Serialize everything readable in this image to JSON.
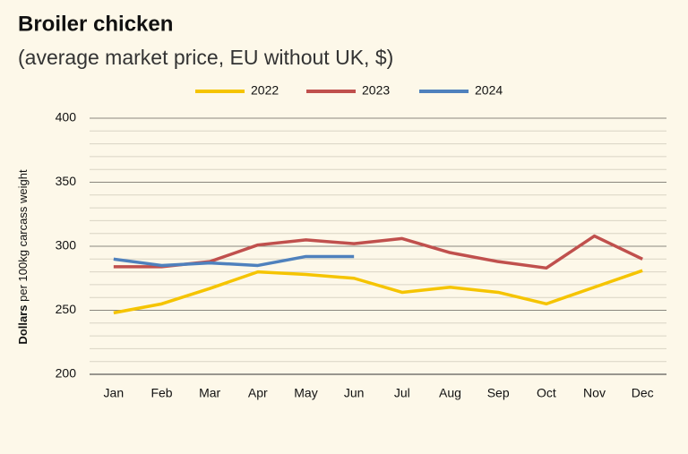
{
  "chart_data": {
    "type": "line",
    "title": "Broiler chicken",
    "subtitle": "(average market price, EU without UK, $)",
    "y_label_bold": "Dollars",
    "y_label": "per 100kg carcass weight",
    "categories": [
      "Jan",
      "Feb",
      "Mar",
      "Apr",
      "May",
      "Jun",
      "Jul",
      "Aug",
      "Sep",
      "Oct",
      "Nov",
      "Dec"
    ],
    "series": [
      {
        "name": "2022",
        "color": "#f5c400",
        "values": [
          248,
          255,
          267,
          280,
          278,
          275,
          264,
          268,
          264,
          255,
          268,
          281
        ]
      },
      {
        "name": "2023",
        "color": "#c0504d",
        "values": [
          284,
          284,
          288,
          301,
          305,
          302,
          306,
          295,
          288,
          283,
          308,
          290
        ]
      },
      {
        "name": "2024",
        "color": "#4f81bd",
        "values": [
          290,
          285,
          287,
          285,
          292,
          292,
          null,
          null,
          null,
          null,
          null,
          null
        ]
      }
    ],
    "ylim": [
      200,
      400
    ],
    "yticks": [
      200,
      250,
      300,
      350,
      400
    ],
    "minor_yticks": [
      210,
      220,
      230,
      240,
      260,
      270,
      280,
      290,
      310,
      320,
      330,
      340,
      360,
      370,
      380,
      390
    ],
    "grid": true,
    "legend": "top"
  }
}
